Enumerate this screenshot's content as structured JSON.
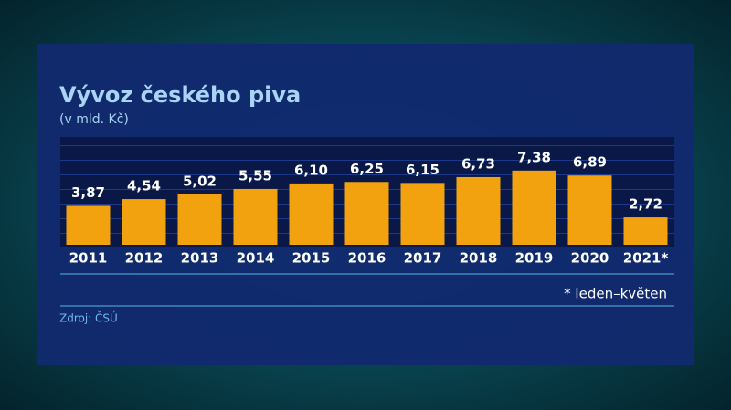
{
  "chart_data": {
    "type": "bar",
    "title": "Vývoz českého piva",
    "subtitle": "(v mld. Kč)",
    "categories": [
      "2011",
      "2012",
      "2013",
      "2014",
      "2015",
      "2016",
      "2017",
      "2018",
      "2019",
      "2020",
      "2021*"
    ],
    "values": [
      3.87,
      4.54,
      5.02,
      5.55,
      6.1,
      6.25,
      6.15,
      6.73,
      7.38,
      6.89,
      2.72
    ],
    "value_labels": [
      "3,87",
      "4,54",
      "5,02",
      "5,55",
      "6,10",
      "6,25",
      "6,15",
      "6,73",
      "7,38",
      "6,89",
      "2,72"
    ],
    "color": "#f2a20f",
    "ylim": [
      0,
      9
    ],
    "note": "* leden–květen",
    "source": "Zdroj: ČSÚ"
  }
}
